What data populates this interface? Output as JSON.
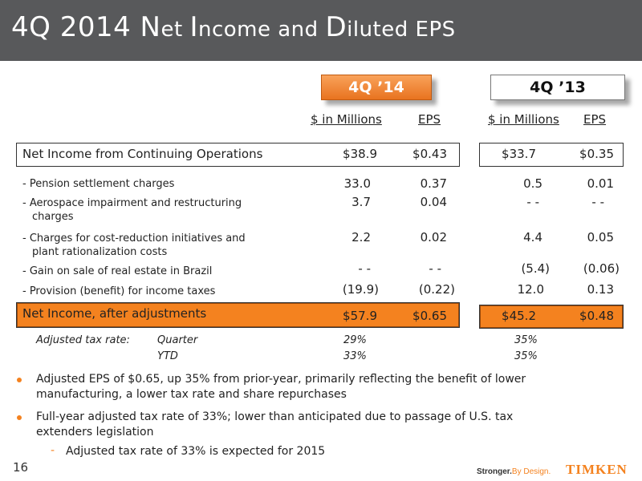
{
  "slide": {
    "title_a": "4Q 2014 N",
    "title_b": "et ",
    "title_c": "I",
    "title_d": "ncome and ",
    "title_e": "D",
    "title_f": "iluted EPS",
    "page_number": "16"
  },
  "headers": {
    "current": "4Q ’14",
    "prior": "4Q ’13",
    "millions": "$ in Millions",
    "eps": "EPS"
  },
  "net_income_continuing": {
    "label": "Net Income from Continuing Operations",
    "m14": "$38.9",
    "e14": "$0.43",
    "m13": "$33.7",
    "e13": "$0.35"
  },
  "adjustments": [
    {
      "label": "- Pension settlement charges",
      "label2": "",
      "m14": "33.0",
      "e14": "0.37",
      "m13": "0.5",
      "e13": "0.01"
    },
    {
      "label": "- Aerospace impairment and restructuring",
      "label2": "charges",
      "m14": "3.7",
      "e14": "0.04",
      "m13": "- -",
      "e13": "- -"
    },
    {
      "label": "- Charges for cost-reduction initiatives and",
      "label2": "plant rationalization costs",
      "m14": "2.2",
      "e14": "0.02",
      "m13": "4.4",
      "e13": "0.05"
    },
    {
      "label": "- Gain on sale of real estate in Brazil",
      "label2": "",
      "m14": "- -",
      "e14": "- -",
      "m13": "(5.4)",
      "e13": "(0.06)"
    },
    {
      "label": "- Provision (benefit) for income taxes",
      "label2": "",
      "m14": "(19.9)",
      "e14": "(0.22)",
      "m13": "12.0",
      "e13": "0.13"
    }
  ],
  "net_income_adjusted": {
    "label": "Net Income, after adjustments",
    "m14": "$57.9",
    "e14": "$0.65",
    "m13": "$45.2",
    "e13": "$0.48"
  },
  "tax_rate": {
    "label": "Adjusted tax rate:",
    "quarter_label": "Quarter",
    "quarter_14": "29%",
    "quarter_13": "35%",
    "ytd_label": "YTD",
    "ytd_14": "33%",
    "ytd_13": "35%"
  },
  "bullets": [
    {
      "line1": "Adjusted EPS of $0.65, up 35% from prior-year, primarily reflecting the benefit of lower",
      "line2": "manufacturing, a lower tax rate and share repurchases"
    },
    {
      "line1": "Full-year adjusted tax rate of 33%; lower than anticipated due to passage of U.S. tax",
      "line2": "extenders legislation"
    }
  ],
  "sub_bullet": "Adjusted tax rate of 33% is expected for 2015",
  "footer": {
    "tagline_a": "Stronger.",
    "tagline_b": "By Design.",
    "logo": "TIMKEN"
  },
  "colors": {
    "accent": "#f4821f",
    "title_bar": "#58595b"
  }
}
